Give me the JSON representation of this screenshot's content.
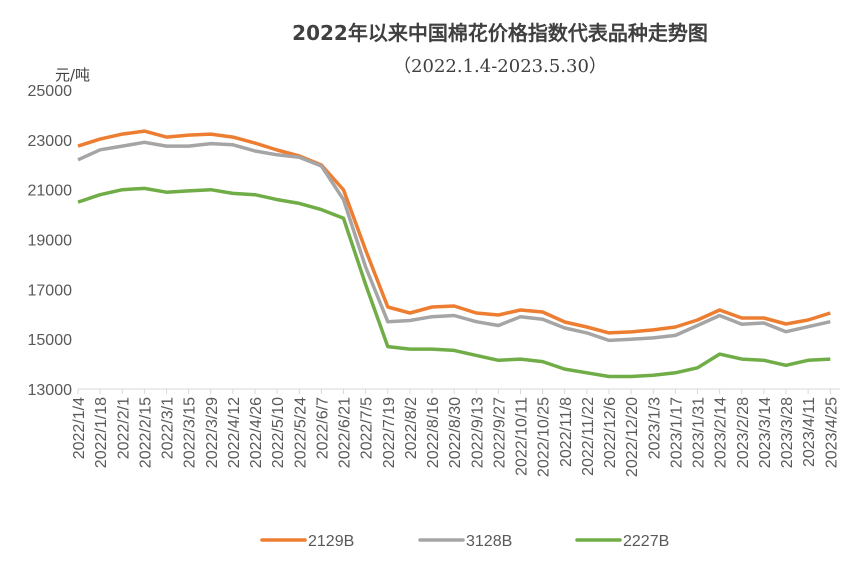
{
  "chart_data": {
    "type": "line",
    "title": "2022年以来中国棉花价格指数代表品种走势图",
    "subtitle": "（2022.1.4-2023.5.30）",
    "ylabel": "元/吨",
    "xlabel": "",
    "ylim": [
      13000,
      25000
    ],
    "yticks": [
      13000,
      15000,
      17000,
      19000,
      21000,
      23000,
      25000
    ],
    "grid": false,
    "legend_position": "bottom",
    "categories": [
      "2022/1/4",
      "2022/1/18",
      "2022/2/1",
      "2022/2/15",
      "2022/3/1",
      "2022/3/15",
      "2022/3/29",
      "2022/4/12",
      "2022/4/26",
      "2022/5/10",
      "2022/5/24",
      "2022/6/7",
      "2022/6/21",
      "2022/7/5",
      "2022/7/19",
      "2022/8/2",
      "2022/8/16",
      "2022/8/30",
      "2022/9/13",
      "2022/9/27",
      "2022/10/11",
      "2022/10/25",
      "2022/11/8",
      "2022/11/22",
      "2022/12/6",
      "2022/12/20",
      "2023/1/3",
      "2023/1/17",
      "2023/1/31",
      "2023/2/14",
      "2023/2/28",
      "2023/3/14",
      "2023/3/28",
      "2023/4/11",
      "2023/4/25"
    ],
    "series": [
      {
        "name": "2129B",
        "color": "#ED7D31",
        "values": [
          22750,
          23030,
          23230,
          23350,
          23110,
          23190,
          23230,
          23110,
          22870,
          22590,
          22350,
          21990,
          20990,
          18580,
          16290,
          16050,
          16290,
          16330,
          16050,
          15970,
          16170,
          16090,
          15690,
          15490,
          15250,
          15290,
          15370,
          15490,
          15770,
          16170,
          15850,
          15850,
          15610,
          15770,
          16050
        ]
      },
      {
        "name": "3128B",
        "color": "#A5A5A5",
        "values": [
          22200,
          22600,
          22750,
          22900,
          22750,
          22750,
          22850,
          22800,
          22550,
          22400,
          22300,
          21950,
          20600,
          17900,
          15700,
          15750,
          15900,
          15950,
          15700,
          15550,
          15900,
          15800,
          15450,
          15250,
          14950,
          15000,
          15050,
          15150,
          15550,
          15950,
          15600,
          15650,
          15300,
          15500,
          15700
        ]
      },
      {
        "name": "2227B",
        "color": "#70AD47",
        "values": [
          20500,
          20800,
          21000,
          21050,
          20900,
          20950,
          21000,
          20850,
          20800,
          20600,
          20450,
          20200,
          19850,
          17200,
          14700,
          14600,
          14600,
          14550,
          14350,
          14150,
          14200,
          14100,
          13800,
          13650,
          13500,
          13500,
          13550,
          13650,
          13850,
          14400,
          14200,
          14150,
          13950,
          14150,
          14200
        ]
      }
    ]
  }
}
